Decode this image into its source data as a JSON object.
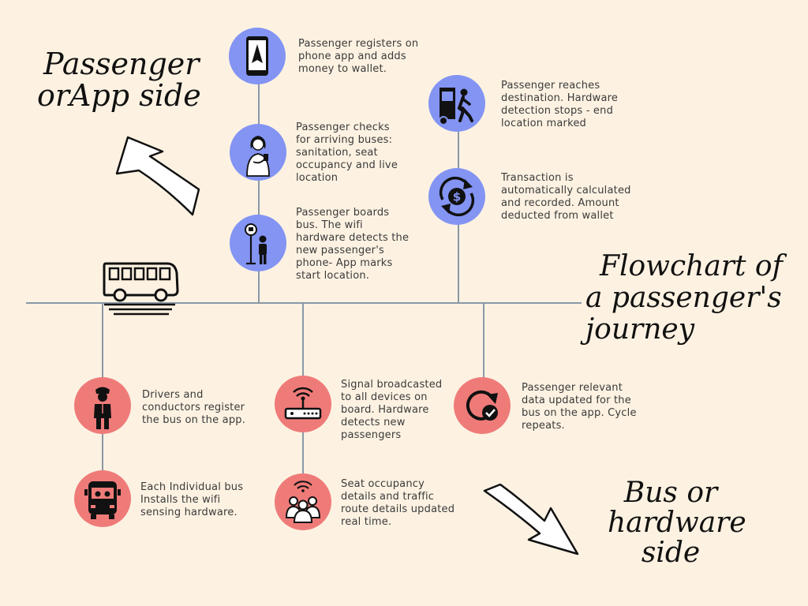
{
  "titles": {
    "passenger_side": [
      "Passenger",
      "orApp side"
    ],
    "flowchart": [
      "Flowchart of",
      "a passenger's",
      "journey"
    ],
    "bus_side": [
      "Bus or",
      "hardware",
      "side"
    ]
  },
  "steps": {
    "app_register": "Passenger registers on phone app and adds money to wallet.",
    "check_buses": "Passenger checks for arriving buses: sanitation, seat occupancy and live location",
    "boards_bus": "Passenger boards bus. The wifi hardware detects the new passenger's phone- App marks start location.",
    "reaches_destination": "Passenger reaches destination. Hardware detection stops - end location marked",
    "transaction": "Transaction is automatically calculated and recorded. Amount deducted from wallet",
    "drivers_register": "Drivers and conductors register the bus on the app.",
    "install_hardware": "Each Individual bus Installs the wifi sensing hardware.",
    "signal_broadcast": "Signal broadcasted to all devices on board. Hardware detects new passengers",
    "seat_occupancy": "Seat occupancy details and traffic route details updated real time.",
    "cycle_repeats": "Passenger relevant data updated for the bus on the app. Cycle repeats."
  },
  "icons": {
    "app_register": "phone-navigation-icon",
    "check_buses": "woman-with-phone-icon",
    "boards_bus": "bus-stop-person-icon",
    "reaches_destination": "person-leaving-bus-icon",
    "transaction": "dollar-exchange-icon",
    "drivers_register": "driver-icon",
    "install_hardware": "bus-front-icon",
    "signal_broadcast": "wifi-router-icon",
    "seat_occupancy": "crowd-signal-icon",
    "cycle_repeats": "refresh-check-icon",
    "timeline": "bus-side-icon"
  },
  "colors": {
    "background": "#fdf2e2",
    "app_side_node": "#8394f3",
    "hardware_side_node": "#ef7b79",
    "line": "#8a98a6"
  }
}
